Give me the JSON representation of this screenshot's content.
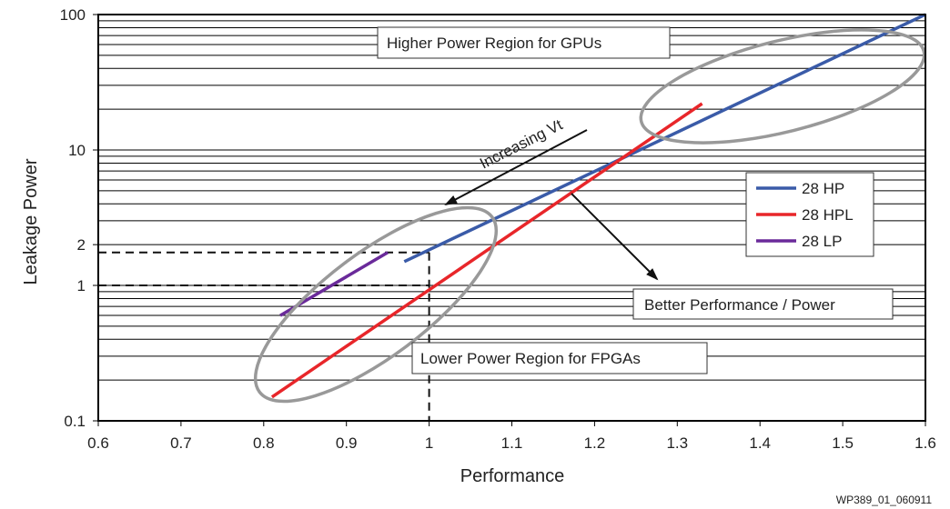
{
  "chart_data": {
    "type": "line",
    "xlabel": "Performance",
    "ylabel": "Leakage Power",
    "x_ticks": [
      "0.6",
      "0.7",
      "0.8",
      "0.9",
      "1",
      "1.1",
      "1.2",
      "1.3",
      "1.4",
      "1.5",
      "1.6"
    ],
    "xlim": [
      0.6,
      1.6
    ],
    "ylim": [
      0.1,
      100
    ],
    "y_scale": "log",
    "y_ticks": [
      {
        "value": 0.1,
        "label": "0.1"
      },
      {
        "value": 1,
        "label": "1"
      },
      {
        "value": 2,
        "label": "2"
      },
      {
        "value": 10,
        "label": "10"
      },
      {
        "value": 100,
        "label": "100"
      }
    ],
    "grid": "horizontal",
    "legend_position": "right",
    "series": [
      {
        "name": "28 HP",
        "color": "#3a5ba8",
        "points": [
          [
            0.97,
            1.5
          ],
          [
            1.6,
            100
          ]
        ]
      },
      {
        "name": "28 HPL",
        "color": "#e8262a",
        "points": [
          [
            0.81,
            0.15
          ],
          [
            1.33,
            22
          ]
        ]
      },
      {
        "name": "28 LP",
        "color": "#6a2a9a",
        "points": [
          [
            0.82,
            0.6
          ],
          [
            0.95,
            1.75
          ]
        ]
      }
    ],
    "annotations": {
      "gpu_region": "Higher Power Region for GPUs",
      "fpga_region": "Lower Power Region for FPGAs",
      "perf_power": "Better Performance / Power",
      "vt_arrow": "Increasing Vt"
    },
    "reference_lines": [
      {
        "x": 1.0,
        "y": 1
      },
      {
        "x": 1.0,
        "y": 1.75
      }
    ],
    "figure_id": "WP389_01_060911"
  }
}
